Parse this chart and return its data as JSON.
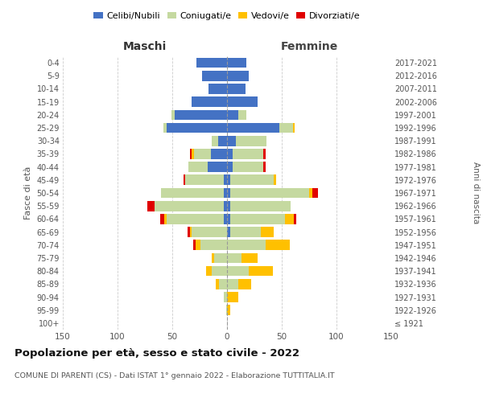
{
  "age_groups": [
    "100+",
    "95-99",
    "90-94",
    "85-89",
    "80-84",
    "75-79",
    "70-74",
    "65-69",
    "60-64",
    "55-59",
    "50-54",
    "45-49",
    "40-44",
    "35-39",
    "30-34",
    "25-29",
    "20-24",
    "15-19",
    "10-14",
    "5-9",
    "0-4"
  ],
  "birth_years": [
    "≤ 1921",
    "1922-1926",
    "1927-1931",
    "1932-1936",
    "1937-1941",
    "1942-1946",
    "1947-1951",
    "1952-1956",
    "1957-1961",
    "1962-1966",
    "1967-1971",
    "1972-1976",
    "1977-1981",
    "1982-1986",
    "1987-1991",
    "1992-1996",
    "1997-2001",
    "2002-2006",
    "2007-2011",
    "2012-2016",
    "2017-2021"
  ],
  "male_celibi": [
    0,
    0,
    0,
    0,
    0,
    0,
    0,
    0,
    3,
    3,
    3,
    3,
    18,
    15,
    8,
    55,
    48,
    32,
    17,
    23,
    28
  ],
  "male_coniugati": [
    0,
    1,
    3,
    7,
    14,
    12,
    24,
    32,
    52,
    63,
    57,
    35,
    17,
    15,
    6,
    3,
    3,
    0,
    0,
    0,
    0
  ],
  "male_vedovi": [
    0,
    0,
    0,
    3,
    5,
    2,
    5,
    2,
    2,
    0,
    0,
    0,
    0,
    2,
    0,
    0,
    0,
    0,
    0,
    0,
    0
  ],
  "male_divorziati": [
    0,
    0,
    0,
    0,
    0,
    0,
    2,
    2,
    4,
    7,
    0,
    2,
    0,
    2,
    0,
    0,
    0,
    0,
    0,
    0,
    0
  ],
  "female_celibi": [
    0,
    0,
    0,
    0,
    0,
    0,
    0,
    3,
    3,
    3,
    3,
    3,
    5,
    5,
    8,
    48,
    10,
    28,
    17,
    20,
    18
  ],
  "female_coniugati": [
    0,
    0,
    0,
    10,
    20,
    13,
    35,
    28,
    50,
    55,
    72,
    40,
    28,
    28,
    28,
    12,
    8,
    0,
    0,
    0,
    0
  ],
  "female_vedovi": [
    0,
    3,
    10,
    12,
    22,
    15,
    22,
    12,
    8,
    0,
    3,
    2,
    0,
    0,
    0,
    2,
    0,
    0,
    0,
    0,
    0
  ],
  "female_divorziati": [
    0,
    0,
    0,
    0,
    0,
    0,
    0,
    0,
    2,
    0,
    5,
    0,
    2,
    2,
    0,
    0,
    0,
    0,
    0,
    0,
    0
  ],
  "colors": {
    "celibi": "#4472c4",
    "coniugati": "#c5d9a0",
    "vedovi": "#ffc000",
    "divorziati": "#e00000"
  },
  "xlim": 150,
  "title": "Popolazione per età, sesso e stato civile - 2022",
  "subtitle": "COMUNE DI PARENTI (CS) - Dati ISTAT 1° gennaio 2022 - Elaborazione TUTTITALIA.IT",
  "ylabel_left": "Fasce di età",
  "ylabel_right": "Anni di nascita",
  "xlabel_left": "Maschi",
  "xlabel_right": "Femmine",
  "bg_color": "#ffffff",
  "grid_color": "#cccccc"
}
